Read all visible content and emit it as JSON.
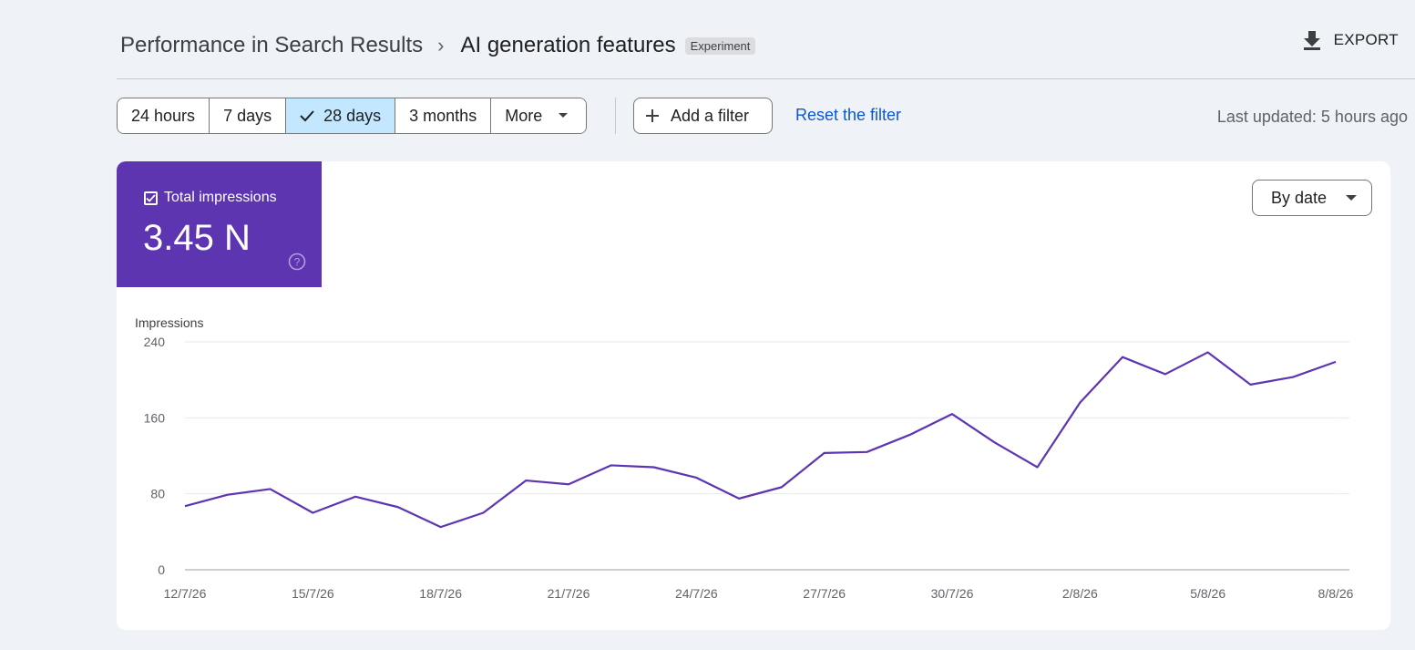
{
  "header": {
    "breadcrumb_parent": "Performance in Search Results",
    "breadcrumb_separator": "›",
    "title": "AI generation features",
    "badge": "Experiment",
    "export_label": "EXPORT"
  },
  "toolbar": {
    "ranges": [
      {
        "label": "24 hours",
        "active": false
      },
      {
        "label": "7 days",
        "active": false
      },
      {
        "label": "28 days",
        "active": true
      },
      {
        "label": "3 months",
        "active": false
      },
      {
        "label": "More",
        "active": false
      }
    ],
    "add_filter_label": "Add a filter",
    "reset_label": "Reset the filter",
    "last_updated": "Last updated: 5 hours ago"
  },
  "metric": {
    "label": "Total impressions",
    "value": "3.45 N",
    "checked": true,
    "color": "#5e35b1"
  },
  "group_by": {
    "selected": "By date"
  },
  "chart_data": {
    "type": "line",
    "ylabel": "Impressions",
    "ylim": [
      0,
      240
    ],
    "yticks": [
      0,
      80,
      160,
      240
    ],
    "x": [
      "12/7/26",
      "13/7/26",
      "14/7/26",
      "15/7/26",
      "16/7/26",
      "17/7/26",
      "18/7/26",
      "19/7/26",
      "20/7/26",
      "21/7/26",
      "22/7/26",
      "23/7/26",
      "24/7/26",
      "25/7/26",
      "26/7/26",
      "27/7/26",
      "28/7/26",
      "29/7/26",
      "30/7/26",
      "31/7/26",
      "1/8/26",
      "2/8/26",
      "3/8/26",
      "4/8/26",
      "5/8/26",
      "6/8/26",
      "7/8/26",
      "8/8/26"
    ],
    "xtick_labels": [
      "12/7/26",
      "15/7/26",
      "18/7/26",
      "21/7/26",
      "24/7/26",
      "27/7/26",
      "30/7/26",
      "2/8/26",
      "5/8/26",
      "8/8/26"
    ],
    "series": [
      {
        "color": "#5e35b1",
        "values": [
          67,
          79,
          85,
          60,
          77,
          66,
          45,
          60,
          94,
          90,
          110,
          108,
          97,
          75,
          87,
          123,
          124,
          142,
          164,
          134,
          108,
          176,
          224,
          206,
          229,
          195,
          203,
          219
        ]
      }
    ],
    "grid": true
  }
}
